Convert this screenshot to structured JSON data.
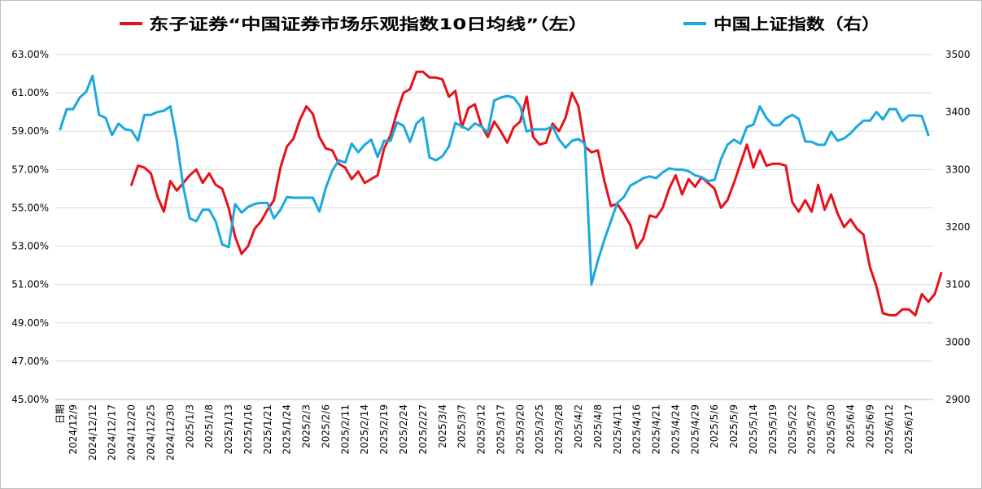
{
  "chart_data": {
    "type": "line",
    "legend_position": "top",
    "grid": true,
    "xlabel": "日期",
    "series": [
      {
        "name": "东子证券“中国证券市场乐观指数10日均线”（左）",
        "axis": "left",
        "color": "#e8101a",
        "values": [
          null,
          null,
          null,
          null,
          null,
          null,
          null,
          null,
          null,
          null,
          null,
          56.2,
          57.2,
          57.1,
          56.8,
          55.6,
          54.8,
          56.4,
          55.9,
          56.3,
          56.7,
          57.0,
          56.3,
          56.8,
          56.2,
          56.0,
          55.0,
          53.5,
          52.6,
          53.0,
          53.9,
          54.3,
          54.9,
          55.4,
          57.1,
          58.2,
          58.6,
          59.6,
          60.3,
          59.9,
          58.7,
          58.1,
          58.0,
          57.3,
          57.1,
          56.5,
          56.9,
          56.3,
          56.5,
          56.7,
          58.1,
          58.8,
          60.0,
          61.0,
          61.2,
          62.1,
          62.1,
          61.8,
          61.8,
          61.7,
          60.8,
          61.1,
          59.2,
          60.2,
          60.4,
          59.3,
          58.7,
          59.5,
          59.0,
          58.4,
          59.2,
          59.5,
          60.8,
          58.7,
          58.3,
          58.4,
          59.4,
          59.0,
          59.7,
          61.0,
          60.3,
          58.2,
          57.9,
          58.0,
          56.4,
          55.1,
          55.2,
          54.7,
          54.1,
          52.9,
          53.4,
          54.6,
          54.5,
          55.0,
          56.0,
          56.7,
          55.7,
          56.5,
          56.1,
          56.6,
          56.3,
          56.0,
          55.0,
          55.4,
          56.3,
          57.3,
          58.3,
          57.1,
          58.0,
          57.2,
          57.3,
          57.3,
          57.2,
          55.3,
          54.8,
          55.4,
          54.8,
          56.2,
          54.9,
          55.7,
          54.7,
          54.0,
          54.4,
          53.9,
          53.6,
          51.9,
          50.9,
          49.5,
          49.4,
          49.4,
          49.7,
          49.7,
          49.4,
          50.5,
          50.1,
          50.5,
          51.6
        ]
      },
      {
        "name": "中国上证指数（右）",
        "axis": "right",
        "color": "#1ba8e0",
        "values": [
          3370,
          3405,
          3405,
          3425,
          3435,
          3463,
          3395,
          3390,
          3360,
          3380,
          3370,
          3368,
          3350,
          3395,
          3395,
          3400,
          3402,
          3410,
          3350,
          3270,
          3215,
          3210,
          3230,
          3230,
          3210,
          3170,
          3165,
          3240,
          3225,
          3235,
          3240,
          3242,
          3242,
          3215,
          3230,
          3252,
          3251,
          3251,
          3251,
          3251,
          3227,
          3268,
          3298,
          3316,
          3312,
          3345,
          3330,
          3343,
          3352,
          3322,
          3350,
          3350,
          3382,
          3376,
          3348,
          3380,
          3390,
          3321,
          3316,
          3323,
          3340,
          3381,
          3375,
          3369,
          3380,
          3375,
          3364,
          3420,
          3425,
          3428,
          3425,
          3410,
          3366,
          3370,
          3370,
          3370,
          3375,
          3352,
          3338,
          3350,
          3353,
          3345,
          3100,
          3142,
          3178,
          3210,
          3242,
          3252,
          3272,
          3278,
          3285,
          3288,
          3285,
          3295,
          3302,
          3300,
          3300,
          3297,
          3290,
          3287,
          3280,
          3282,
          3318,
          3343,
          3352,
          3345,
          3374,
          3378,
          3410,
          3390,
          3377,
          3377,
          3389,
          3395,
          3388,
          3349,
          3348,
          3343,
          3343,
          3366,
          3350,
          3354,
          3363,
          3375,
          3385,
          3385,
          3400,
          3387,
          3405,
          3405,
          3384,
          3394,
          3394,
          3393,
          3360
        ]
      }
    ],
    "left_axis": {
      "min": 45,
      "max": 63,
      "ticks": [
        "45.00%",
        "47.00%",
        "49.00%",
        "51.00%",
        "53.00%",
        "55.00%",
        "57.00%",
        "59.00%",
        "61.00%",
        "63.00%"
      ]
    },
    "right_axis": {
      "min": 2900,
      "max": 3500,
      "ticks": [
        "2900",
        "3000",
        "3100",
        "3200",
        "3300",
        "3400",
        "3500"
      ]
    },
    "x_tick_labels": [
      {
        "i": 0,
        "label": "日期"
      },
      {
        "i": 2,
        "label": "2024/12/9"
      },
      {
        "i": 5,
        "label": "2024/12/12"
      },
      {
        "i": 8,
        "label": "2024/12/17"
      },
      {
        "i": 11,
        "label": "2024/12/20"
      },
      {
        "i": 14,
        "label": "2024/12/25"
      },
      {
        "i": 17,
        "label": "2024/12/30"
      },
      {
        "i": 20,
        "label": "2025/1/3"
      },
      {
        "i": 23,
        "label": "2025/1/8"
      },
      {
        "i": 26,
        "label": "2025/1/13"
      },
      {
        "i": 29,
        "label": "2025/1/16"
      },
      {
        "i": 32,
        "label": "2025/1/21"
      },
      {
        "i": 35,
        "label": "2025/1/24"
      },
      {
        "i": 38,
        "label": "2025/2/3"
      },
      {
        "i": 41,
        "label": "2025/2/6"
      },
      {
        "i": 44,
        "label": "2025/2/11"
      },
      {
        "i": 47,
        "label": "2025/2/14"
      },
      {
        "i": 50,
        "label": "2025/2/19"
      },
      {
        "i": 53,
        "label": "2025/2/24"
      },
      {
        "i": 56,
        "label": "2025/2/27"
      },
      {
        "i": 59,
        "label": "2025/3/4"
      },
      {
        "i": 62,
        "label": "2025/3/7"
      },
      {
        "i": 65,
        "label": "2025/3/12"
      },
      {
        "i": 68,
        "label": "2025/3/17"
      },
      {
        "i": 71,
        "label": "2025/3/20"
      },
      {
        "i": 74,
        "label": "2025/3/25"
      },
      {
        "i": 77,
        "label": "2025/3/28"
      },
      {
        "i": 80,
        "label": "2025/4/2"
      },
      {
        "i": 83,
        "label": "2025/4/8"
      },
      {
        "i": 86,
        "label": "2025/4/11"
      },
      {
        "i": 89,
        "label": "2025/4/16"
      },
      {
        "i": 92,
        "label": "2025/4/21"
      },
      {
        "i": 95,
        "label": "2025/4/24"
      },
      {
        "i": 98,
        "label": "2025/4/29"
      },
      {
        "i": 101,
        "label": "2025/5/6"
      },
      {
        "i": 104,
        "label": "2025/5/9"
      },
      {
        "i": 107,
        "label": "2025/5/14"
      },
      {
        "i": 110,
        "label": "2025/5/19"
      },
      {
        "i": 113,
        "label": "2025/5/22"
      },
      {
        "i": 116,
        "label": "2025/5/27"
      },
      {
        "i": 119,
        "label": "2025/5/30"
      },
      {
        "i": 122,
        "label": "2025/6/4"
      },
      {
        "i": 125,
        "label": "2025/6/9"
      },
      {
        "i": 128,
        "label": "2025/6/12"
      },
      {
        "i": 131,
        "label": "2025/6/17"
      }
    ]
  }
}
